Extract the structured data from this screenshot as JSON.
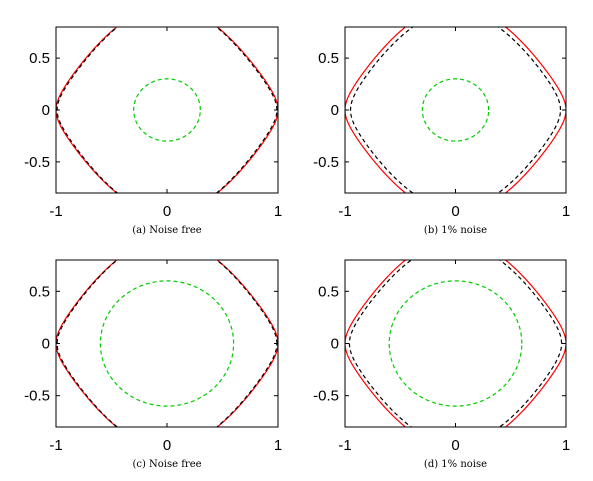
{
  "chart_data": [
    {
      "type": "line",
      "caption": "(a) Noise free",
      "xlim": [
        -1,
        1
      ],
      "ylim": [
        -0.8,
        0.8
      ],
      "xticks": [
        "-1",
        "0",
        "1"
      ],
      "yticks": [
        "0.5",
        "0",
        "-0.5"
      ],
      "grid": false,
      "series": [
        {
          "style": "solid",
          "color": "#ff0000",
          "shape": "peanut",
          "params": {
            "a": 1.0,
            "b": 0.5,
            "c": 0.5
          }
        },
        {
          "style": "dashed",
          "color": "#000000",
          "shape": "peanut",
          "params": {
            "a": 0.99,
            "b": 0.49,
            "c": 0.51
          }
        },
        {
          "style": "dashed",
          "color": "#00cc00",
          "shape": "circle",
          "params": {
            "cx": 0,
            "cy": 0,
            "r": 0.3
          }
        }
      ]
    },
    {
      "type": "line",
      "caption": "(b) 1% noise",
      "xlim": [
        -1,
        1
      ],
      "ylim": [
        -0.8,
        0.8
      ],
      "xticks": [
        "-1",
        "0",
        "1"
      ],
      "yticks": [
        "0.5",
        "0",
        "-0.5"
      ],
      "grid": false,
      "series": [
        {
          "style": "solid",
          "color": "#ff0000",
          "shape": "peanut",
          "params": {
            "a": 1.0,
            "b": 0.5,
            "c": 0.5
          }
        },
        {
          "style": "dashed",
          "color": "#000000",
          "shape": "peanut",
          "params": {
            "a": 0.95,
            "b": 0.5,
            "c": 0.45
          }
        },
        {
          "style": "dashed",
          "color": "#00cc00",
          "shape": "circle",
          "params": {
            "cx": 0,
            "cy": 0,
            "r": 0.3
          }
        }
      ]
    },
    {
      "type": "line",
      "caption": "(c) Noise free",
      "xlim": [
        -1,
        1
      ],
      "ylim": [
        -0.8,
        0.8
      ],
      "xticks": [
        "-1",
        "0",
        "1"
      ],
      "yticks": [
        "0.5",
        "0",
        "-0.5"
      ],
      "grid": false,
      "series": [
        {
          "style": "solid",
          "color": "#ff0000",
          "shape": "peanut",
          "params": {
            "a": 1.0,
            "b": 0.5,
            "c": 0.5
          }
        },
        {
          "style": "dashed",
          "color": "#000000",
          "shape": "peanut",
          "params": {
            "a": 0.99,
            "b": 0.5,
            "c": 0.5
          }
        },
        {
          "style": "dashed",
          "color": "#00cc00",
          "shape": "circle",
          "params": {
            "cx": 0,
            "cy": 0,
            "r": 0.6
          }
        }
      ]
    },
    {
      "type": "line",
      "caption": "(d) 1% noise",
      "xlim": [
        -1,
        1
      ],
      "ylim": [
        -0.8,
        0.8
      ],
      "xticks": [
        "-1",
        "0",
        "1"
      ],
      "yticks": [
        "0.5",
        "0",
        "-0.5"
      ],
      "grid": false,
      "series": [
        {
          "style": "solid",
          "color": "#ff0000",
          "shape": "peanut",
          "params": {
            "a": 1.0,
            "b": 0.5,
            "c": 0.5
          }
        },
        {
          "style": "dashed",
          "color": "#000000",
          "shape": "peanut",
          "params": {
            "a": 0.96,
            "b": 0.5,
            "c": 0.46
          }
        },
        {
          "style": "dashed",
          "color": "#00cc00",
          "shape": "circle",
          "params": {
            "cx": 0,
            "cy": 0,
            "r": 0.6
          }
        }
      ]
    }
  ]
}
